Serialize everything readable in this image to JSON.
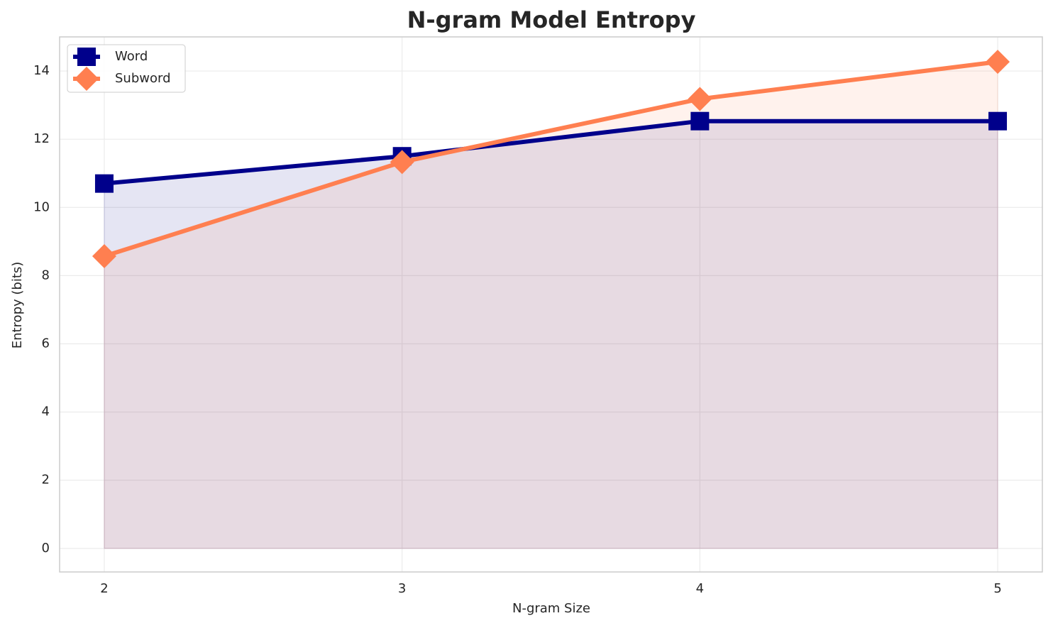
{
  "chart_data": {
    "type": "line",
    "title": "N-gram Model Entropy",
    "x_label": "N-gram Size",
    "y_label": "Entropy (bits)",
    "x": [
      2,
      3,
      4,
      5
    ],
    "series": [
      {
        "name": "Word",
        "color": "#00008b",
        "marker": "square",
        "values": [
          10.7,
          11.5,
          12.53,
          12.53
        ]
      },
      {
        "name": "Subword",
        "color": "#ff7f50",
        "marker": "diamond",
        "values": [
          8.57,
          11.33,
          13.18,
          14.27
        ]
      }
    ],
    "xlim": [
      1.85,
      5.15
    ],
    "ylim": [
      -0.69,
      15
    ],
    "xticks": [
      2,
      3,
      4,
      5
    ],
    "yticks": [
      0,
      2,
      4,
      6,
      8,
      10,
      12,
      14
    ],
    "grid": true,
    "area": true,
    "legend": "upper left"
  }
}
